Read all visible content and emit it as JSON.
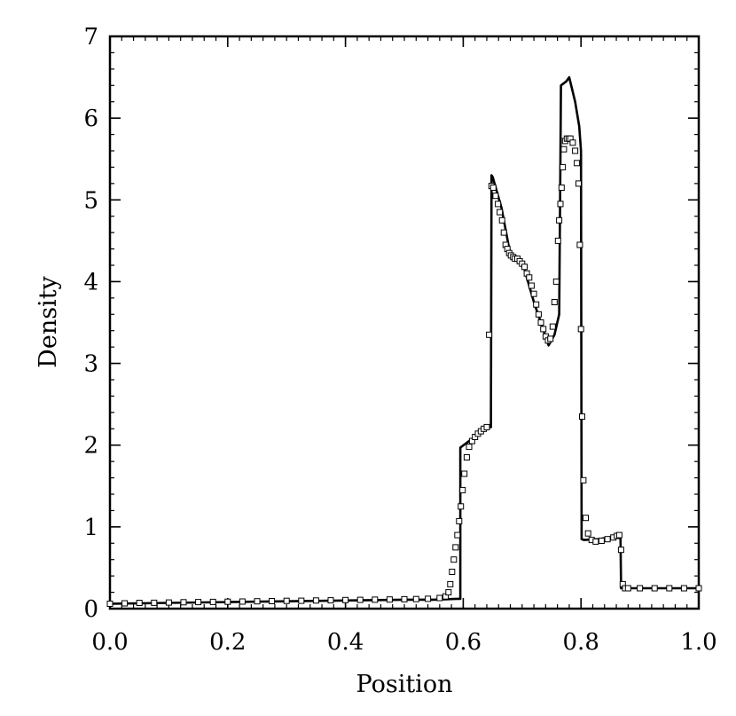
{
  "chart_data": {
    "type": "line",
    "title": "",
    "xlabel": "Position",
    "ylabel": "Density",
    "xlim": [
      0,
      1
    ],
    "ylim": [
      0,
      7
    ],
    "xticks": [
      0.0,
      0.2,
      0.4,
      0.6,
      0.8,
      1.0
    ],
    "xtick_labels": [
      "0.0",
      "0.2",
      "0.4",
      "0.6",
      "0.8",
      "1.0"
    ],
    "yticks": [
      0,
      1,
      2,
      3,
      4,
      5,
      6,
      7
    ],
    "ytick_labels": [
      "0",
      "1",
      "2",
      "3",
      "4",
      "5",
      "6",
      "7"
    ],
    "grid": false,
    "legend": null,
    "series": [
      {
        "style": "line",
        "color": "#000000",
        "x": [
          0.0,
          0.1,
          0.2,
          0.3,
          0.4,
          0.5,
          0.55,
          0.57,
          0.59,
          0.595,
          0.595,
          0.61,
          0.63,
          0.645,
          0.647,
          0.648,
          0.65,
          0.665,
          0.68,
          0.7,
          0.72,
          0.745,
          0.755,
          0.763,
          0.765,
          0.766,
          0.775,
          0.78,
          0.79,
          0.797,
          0.8,
          0.801,
          0.805,
          0.83,
          0.855,
          0.865,
          0.867,
          0.868,
          0.9,
          1.0
        ],
        "y": [
          0.06,
          0.07,
          0.08,
          0.09,
          0.1,
          0.11,
          0.11,
          0.115,
          0.12,
          0.12,
          1.97,
          2.05,
          2.15,
          2.22,
          2.22,
          5.3,
          5.28,
          4.9,
          4.33,
          4.25,
          3.75,
          3.22,
          3.35,
          3.6,
          5.5,
          6.4,
          6.45,
          6.5,
          6.2,
          5.9,
          5.6,
          0.85,
          0.84,
          0.85,
          0.88,
          0.9,
          0.9,
          0.25,
          0.25,
          0.25
        ]
      },
      {
        "style": "markers",
        "marker": "square",
        "color": "#000000",
        "x": [
          0.0,
          0.025,
          0.05,
          0.075,
          0.1,
          0.125,
          0.15,
          0.175,
          0.2,
          0.225,
          0.25,
          0.275,
          0.3,
          0.325,
          0.35,
          0.375,
          0.4,
          0.425,
          0.45,
          0.475,
          0.5,
          0.52,
          0.54,
          0.56,
          0.57,
          0.575,
          0.578,
          0.581,
          0.584,
          0.587,
          0.59,
          0.593,
          0.596,
          0.599,
          0.602,
          0.606,
          0.61,
          0.615,
          0.62,
          0.625,
          0.63,
          0.635,
          0.64,
          0.644,
          0.648,
          0.651,
          0.655,
          0.659,
          0.662,
          0.666,
          0.669,
          0.672,
          0.675,
          0.678,
          0.681,
          0.685,
          0.688,
          0.692,
          0.696,
          0.7,
          0.704,
          0.708,
          0.712,
          0.716,
          0.72,
          0.724,
          0.728,
          0.732,
          0.736,
          0.74,
          0.744,
          0.748,
          0.752,
          0.755,
          0.758,
          0.761,
          0.763,
          0.765,
          0.767,
          0.769,
          0.771,
          0.773,
          0.776,
          0.779,
          0.782,
          0.786,
          0.79,
          0.793,
          0.796,
          0.798,
          0.8,
          0.802,
          0.804,
          0.808,
          0.812,
          0.818,
          0.825,
          0.835,
          0.845,
          0.855,
          0.861,
          0.865,
          0.868,
          0.871,
          0.875,
          0.88,
          0.9,
          0.925,
          0.95,
          0.975,
          1.0
        ],
        "y": [
          0.06,
          0.065,
          0.07,
          0.072,
          0.075,
          0.078,
          0.08,
          0.082,
          0.085,
          0.087,
          0.09,
          0.092,
          0.095,
          0.097,
          0.1,
          0.102,
          0.105,
          0.107,
          0.11,
          0.112,
          0.115,
          0.117,
          0.12,
          0.13,
          0.15,
          0.2,
          0.3,
          0.45,
          0.6,
          0.75,
          0.9,
          1.07,
          1.25,
          1.45,
          1.65,
          1.85,
          1.98,
          2.05,
          2.1,
          2.14,
          2.17,
          2.2,
          2.22,
          3.35,
          5.17,
          5.15,
          5.05,
          4.95,
          4.85,
          4.75,
          4.6,
          4.45,
          4.4,
          4.35,
          4.32,
          4.3,
          4.28,
          4.28,
          4.25,
          4.22,
          4.18,
          4.1,
          4.05,
          3.95,
          3.85,
          3.72,
          3.6,
          3.5,
          3.42,
          3.33,
          3.28,
          3.3,
          3.45,
          3.75,
          4.0,
          4.5,
          4.75,
          4.95,
          5.15,
          5.4,
          5.62,
          5.72,
          5.75,
          5.75,
          5.75,
          5.7,
          5.6,
          5.45,
          5.2,
          4.45,
          3.42,
          2.35,
          1.57,
          1.11,
          0.92,
          0.84,
          0.82,
          0.83,
          0.85,
          0.87,
          0.89,
          0.9,
          0.72,
          0.3,
          0.25,
          0.25,
          0.25,
          0.25,
          0.25,
          0.25,
          0.25
        ]
      }
    ]
  }
}
